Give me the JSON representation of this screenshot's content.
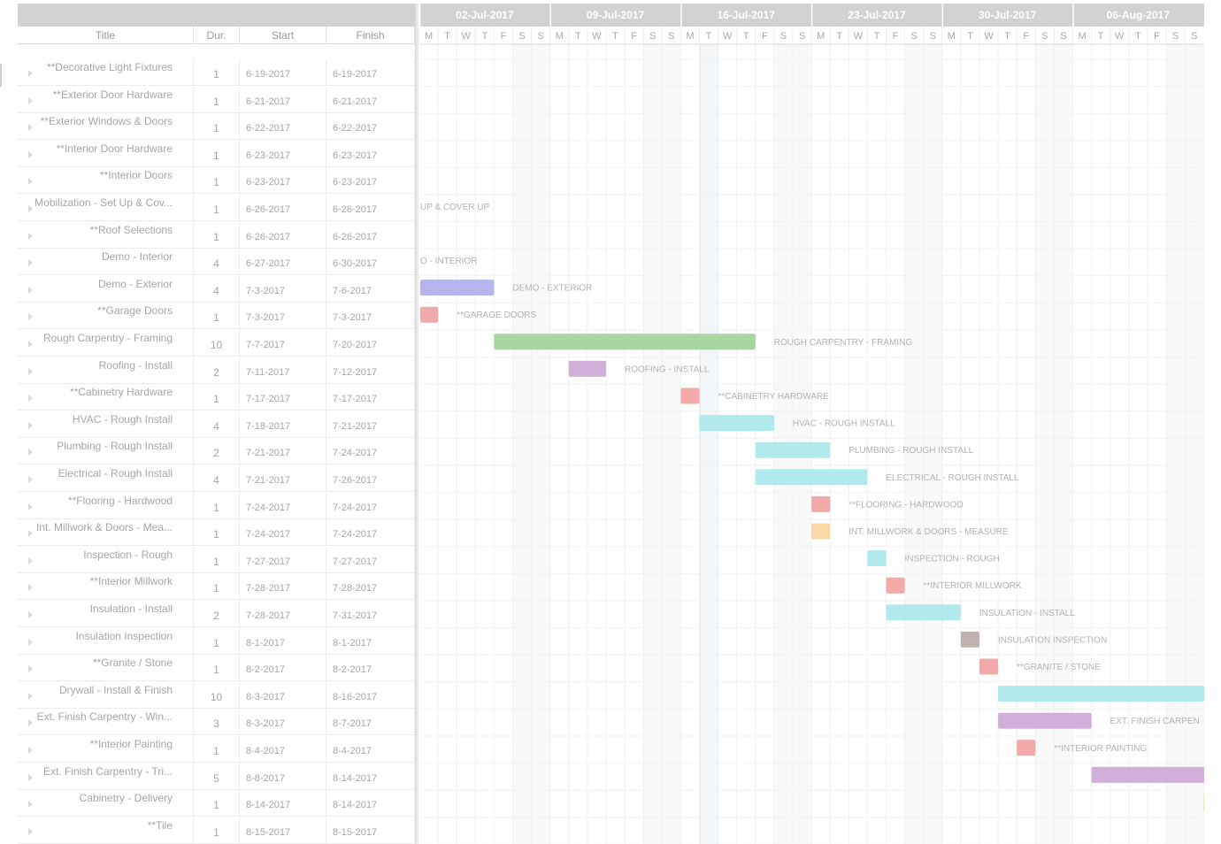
{
  "columns": {
    "title": "Title",
    "duration": "Dur.",
    "start": "Start",
    "finish": "Finish"
  },
  "timeline": {
    "first_day": "2017-07-03",
    "weeks": [
      "02-Jul-2017",
      "09-Jul-2017",
      "16-Jul-2017",
      "23-Jul-2017",
      "30-Jul-2017",
      "06-Aug-2017"
    ],
    "day_letters": [
      "M",
      "T",
      "W",
      "T",
      "F",
      "S",
      "S",
      "M",
      "T",
      "W",
      "T",
      "F",
      "S",
      "S",
      "M",
      "T",
      "W",
      "T",
      "F",
      "S",
      "S",
      "M",
      "T",
      "W",
      "T",
      "F",
      "S",
      "S",
      "M",
      "T",
      "W",
      "T",
      "F",
      "S",
      "S",
      "M",
      "T",
      "W",
      "T",
      "F",
      "S",
      "S"
    ],
    "today": "2017-07-18"
  },
  "chart_data": {
    "type": "gantt",
    "x_range": [
      "2017-07-03",
      "2017-08-14"
    ],
    "tasks": [
      {
        "title": "**Decorative Light Fixtures",
        "duration": "1",
        "start": "6-19-2017",
        "finish": "6-19-2017",
        "bar_start": "2017-06-19",
        "bar_end": "2017-06-19",
        "label": "",
        "color": "#f2a9a9"
      },
      {
        "title": "**Exterior Door Hardware",
        "duration": "1",
        "start": "6-21-2017",
        "finish": "6-21-2017",
        "bar_start": "2017-06-21",
        "bar_end": "2017-06-21",
        "label": "",
        "color": "#f2a9a9"
      },
      {
        "title": "**Exterior Windows & Doors",
        "duration": "1",
        "start": "6-22-2017",
        "finish": "6-22-2017",
        "bar_start": "2017-06-22",
        "bar_end": "2017-06-22",
        "label": "",
        "color": "#f2a9a9"
      },
      {
        "title": "**Interior Door Hardware",
        "duration": "1",
        "start": "6-23-2017",
        "finish": "6-23-2017",
        "bar_start": "2017-06-23",
        "bar_end": "2017-06-23",
        "label": "",
        "color": "#f2a9a9"
      },
      {
        "title": "**Interior Doors",
        "duration": "1",
        "start": "6-23-2017",
        "finish": "6-23-2017",
        "bar_start": "2017-06-23",
        "bar_end": "2017-06-23",
        "label": "",
        "color": "#f2a9a9"
      },
      {
        "title": "Mobilization - Set Up & Cov...",
        "duration": "1",
        "start": "6-26-2017",
        "finish": "6-26-2017",
        "bar_start": "2017-06-26",
        "bar_end": "2017-06-26",
        "label": "UP & COVER UP",
        "color": "#b6b3ef"
      },
      {
        "title": "**Roof Selections",
        "duration": "1",
        "start": "6-26-2017",
        "finish": "6-26-2017",
        "bar_start": "2017-06-26",
        "bar_end": "2017-06-26",
        "label": "",
        "color": "#f2a9a9"
      },
      {
        "title": "Demo - Interior",
        "duration": "4",
        "start": "6-27-2017",
        "finish": "6-30-2017",
        "bar_start": "2017-06-27",
        "bar_end": "2017-06-30",
        "label": "O - INTERIOR",
        "color": "#b6b3ef"
      },
      {
        "title": "Demo - Exterior",
        "duration": "4",
        "start": "7-3-2017",
        "finish": "7-6-2017",
        "bar_start": "2017-07-03",
        "bar_end": "2017-07-06",
        "label": "DEMO - EXTERIOR",
        "color": "#b6b3ef"
      },
      {
        "title": "**Garage Doors",
        "duration": "1",
        "start": "7-3-2017",
        "finish": "7-3-2017",
        "bar_start": "2017-07-03",
        "bar_end": "2017-07-03",
        "label": "**GARAGE DOORS",
        "color": "#f2a9a9"
      },
      {
        "title": "Rough Carpentry - Framing",
        "duration": "10",
        "start": "7-7-2017",
        "finish": "7-20-2017",
        "bar_start": "2017-07-07",
        "bar_end": "2017-07-20",
        "label": "ROUGH CARPENTRY - FRAMING",
        "color": "#a9d5a0"
      },
      {
        "title": "Roofing - Install",
        "duration": "2",
        "start": "7-11-2017",
        "finish": "7-12-2017",
        "bar_start": "2017-07-11",
        "bar_end": "2017-07-12",
        "label": "ROOFING - INSTALL",
        "color": "#d0b0d8"
      },
      {
        "title": "**Cabinetry Hardware",
        "duration": "1",
        "start": "7-17-2017",
        "finish": "7-17-2017",
        "bar_start": "2017-07-17",
        "bar_end": "2017-07-17",
        "label": "**CABINETRY HARDWARE",
        "color": "#f2a9a9"
      },
      {
        "title": "HVAC - Rough Install",
        "duration": "4",
        "start": "7-18-2017",
        "finish": "7-21-2017",
        "bar_start": "2017-07-18",
        "bar_end": "2017-07-21",
        "label": "HVAC - ROUGH INSTALL",
        "color": "#b0eaec"
      },
      {
        "title": "Plumbing - Rough Install",
        "duration": "2",
        "start": "7-21-2017",
        "finish": "7-24-2017",
        "bar_start": "2017-07-21",
        "bar_end": "2017-07-24",
        "label": "PLUMBING - ROUGH INSTALL",
        "color": "#b0eaec"
      },
      {
        "title": "Electrical - Rough Install",
        "duration": "4",
        "start": "7-21-2017",
        "finish": "7-26-2017",
        "bar_start": "2017-07-21",
        "bar_end": "2017-07-26",
        "label": "ELECTRICAL - ROUGH INSTALL",
        "color": "#b0eaec"
      },
      {
        "title": "**Flooring - Hardwood",
        "duration": "1",
        "start": "7-24-2017",
        "finish": "7-24-2017",
        "bar_start": "2017-07-24",
        "bar_end": "2017-07-24",
        "label": "**FLOORING - HARDWOOD",
        "color": "#f2a9a9"
      },
      {
        "title": "Int. Millwork & Doors - Mea...",
        "duration": "1",
        "start": "7-24-2017",
        "finish": "7-24-2017",
        "bar_start": "2017-07-24",
        "bar_end": "2017-07-24",
        "label": "INT. MILLWORK & DOORS - MEASURE",
        "color": "#fcd9a4"
      },
      {
        "title": "Inspection - Rough",
        "duration": "1",
        "start": "7-27-2017",
        "finish": "7-27-2017",
        "bar_start": "2017-07-27",
        "bar_end": "2017-07-27",
        "label": "INSPECTION - ROUGH",
        "color": "#b0eaec"
      },
      {
        "title": "**Interior Millwork",
        "duration": "1",
        "start": "7-28-2017",
        "finish": "7-28-2017",
        "bar_start": "2017-07-28",
        "bar_end": "2017-07-28",
        "label": "**INTERIOR MILLWORK",
        "color": "#f2a9a9"
      },
      {
        "title": "Insulation - Install",
        "duration": "2",
        "start": "7-28-2017",
        "finish": "7-31-2017",
        "bar_start": "2017-07-28",
        "bar_end": "2017-07-31",
        "label": "INSULATION - INSTALL",
        "color": "#b0eaec"
      },
      {
        "title": "Insulation Inspection",
        "duration": "1",
        "start": "8-1-2017",
        "finish": "8-1-2017",
        "bar_start": "2017-08-01",
        "bar_end": "2017-08-01",
        "label": "INSULATION INSPECTION",
        "color": "#c1b1b1"
      },
      {
        "title": "**Granite / Stone",
        "duration": "1",
        "start": "8-2-2017",
        "finish": "8-2-2017",
        "bar_start": "2017-08-02",
        "bar_end": "2017-08-02",
        "label": "**GRANITE / STONE",
        "color": "#f2a9a9"
      },
      {
        "title": "Drywall - Install & Finish",
        "duration": "10",
        "start": "8-3-2017",
        "finish": "8-16-2017",
        "bar_start": "2017-08-03",
        "bar_end": "2017-08-16",
        "label": "",
        "color": "#b0eaec"
      },
      {
        "title": "Ext. Finish Carpentry - Win...",
        "duration": "3",
        "start": "8-3-2017",
        "finish": "8-7-2017",
        "bar_start": "2017-08-03",
        "bar_end": "2017-08-07",
        "label": "EXT. FINISH CARPEN",
        "color": "#d0b0d8"
      },
      {
        "title": "**Interior Painting",
        "duration": "1",
        "start": "8-4-2017",
        "finish": "8-4-2017",
        "bar_start": "2017-08-04",
        "bar_end": "2017-08-04",
        "label": "**INTERIOR PAINTING",
        "color": "#f2a9a9"
      },
      {
        "title": "Ext. Finish Carpentry - Tri...",
        "duration": "5",
        "start": "8-8-2017",
        "finish": "8-14-2017",
        "bar_start": "2017-08-08",
        "bar_end": "2017-08-14",
        "label": "",
        "color": "#d0b0d8"
      },
      {
        "title": "Cabinetry - Delivery",
        "duration": "1",
        "start": "8-14-2017",
        "finish": "8-14-2017",
        "bar_start": "2017-08-14",
        "bar_end": "2017-08-14",
        "label": "",
        "color": "#fcd9a4"
      },
      {
        "title": "**Tile",
        "duration": "1",
        "start": "8-15-2017",
        "finish": "8-15-2017",
        "bar_start": "2017-08-15",
        "bar_end": "2017-08-15",
        "label": "",
        "color": "#f2a9a9"
      }
    ]
  }
}
